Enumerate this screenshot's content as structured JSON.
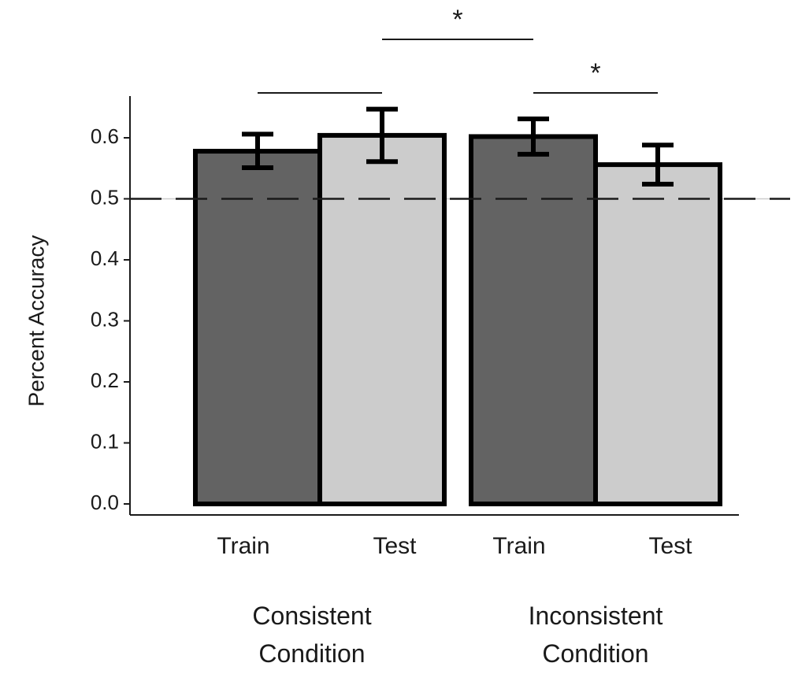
{
  "chart_data": {
    "type": "bar",
    "ylabel": "Percent Accuracy",
    "ylim": [
      0,
      0.65
    ],
    "yticks": [
      "0.0",
      "0.1",
      "0.2",
      "0.3",
      "0.4",
      "0.5",
      "0.6"
    ],
    "reference_line": 0.5,
    "groups": [
      {
        "label_lines": [
          "Consistent",
          "Condition"
        ],
        "bars": [
          {
            "category": "Train",
            "value": 0.578,
            "err_low": 0.551,
            "err_high": 0.606,
            "color": "#636363"
          },
          {
            "category": "Test",
            "value": 0.604,
            "err_low": 0.561,
            "err_high": 0.647,
            "color": "#cccccc"
          }
        ]
      },
      {
        "label_lines": [
          "Inconsistent",
          "Condition"
        ],
        "bars": [
          {
            "category": "Train",
            "value": 0.602,
            "err_low": 0.573,
            "err_high": 0.631,
            "color": "#636363"
          },
          {
            "category": "Test",
            "value": 0.556,
            "err_low": 0.524,
            "err_high": 0.588,
            "color": "#cccccc"
          }
        ]
      }
    ],
    "significance": [
      {
        "from": [
          0,
          0
        ],
        "to": [
          0,
          1
        ],
        "label": ""
      },
      {
        "from": [
          0,
          1
        ],
        "to": [
          1,
          0
        ],
        "label": "*"
      },
      {
        "from": [
          1,
          0
        ],
        "to": [
          1,
          1
        ],
        "label": "*"
      }
    ]
  }
}
